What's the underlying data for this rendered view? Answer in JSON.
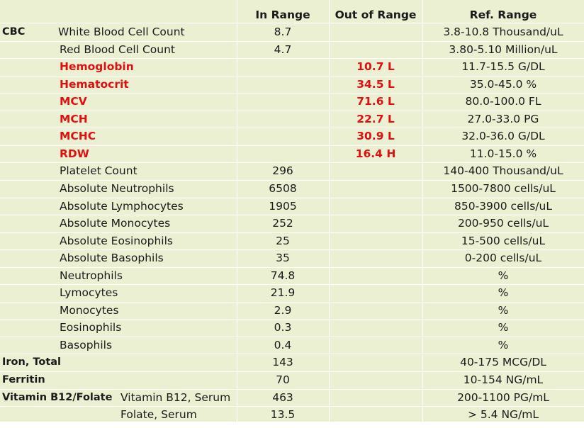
{
  "headers": {
    "in_range": "In Range",
    "out_of_range": "Out of Range",
    "ref_range": "Ref. Range"
  },
  "rows": [
    {
      "group": "CBC",
      "name": "White Blood Cell Count",
      "in": "8.7",
      "out": "",
      "ref": "3.8-10.8  Thousand/uL",
      "flag": false
    },
    {
      "group": "",
      "name": "Red Blood Cell Count",
      "in": "4.7",
      "out": "",
      "ref": "3.80-5.10  Million/uL",
      "flag": false
    },
    {
      "group": "",
      "name": "Hemoglobin",
      "in": "",
      "out": "10.7 L",
      "ref": "11.7-15.5  G/DL",
      "flag": true
    },
    {
      "group": "",
      "name": "Hematocrit",
      "in": "",
      "out": "34.5 L",
      "ref": "35.0-45.0  %",
      "flag": true
    },
    {
      "group": "",
      "name": "MCV",
      "in": "",
      "out": "71.6 L",
      "ref": "80.0-100.0  FL",
      "flag": true
    },
    {
      "group": "",
      "name": "MCH",
      "in": "",
      "out": "22.7 L",
      "ref": "27.0-33.0  PG",
      "flag": true
    },
    {
      "group": "",
      "name": "MCHC",
      "in": "",
      "out": "30.9 L",
      "ref": "32.0-36.0  G/DL",
      "flag": true
    },
    {
      "group": "",
      "name": "RDW",
      "in": "",
      "out": "16.4 H",
      "ref": "11.0-15.0  %",
      "flag": true
    },
    {
      "group": "",
      "name": "Platelet Count",
      "in": "296",
      "out": "",
      "ref": "140-400  Thousand/uL",
      "flag": false
    },
    {
      "group": "",
      "name": "Absolute Neutrophils",
      "in": "6508",
      "out": "",
      "ref": "1500-7800  cells/uL",
      "flag": false
    },
    {
      "group": "",
      "name": "Absolute Lymphocytes",
      "in": "1905",
      "out": "",
      "ref": "850-3900  cells/uL",
      "flag": false
    },
    {
      "group": "",
      "name": "Absolute Monocytes",
      "in": "252",
      "out": "",
      "ref": "200-950  cells/uL",
      "flag": false
    },
    {
      "group": "",
      "name": "Absolute Eosinophils",
      "in": "25",
      "out": "",
      "ref": "15-500  cells/uL",
      "flag": false
    },
    {
      "group": "",
      "name": "Absolute Basophils",
      "in": "35",
      "out": "",
      "ref": "0-200  cells/uL",
      "flag": false
    },
    {
      "group": "",
      "name": "Neutrophils",
      "in": "74.8",
      "out": "",
      "ref": "%",
      "flag": false
    },
    {
      "group": "",
      "name": "Lymocytes",
      "in": "21.9",
      "out": "",
      "ref": "%",
      "flag": false
    },
    {
      "group": "",
      "name": "Monocytes",
      "in": "2.9",
      "out": "",
      "ref": "%",
      "flag": false
    },
    {
      "group": "",
      "name": "Eosinophils",
      "in": "0.3",
      "out": "",
      "ref": "%",
      "flag": false
    },
    {
      "group": "",
      "name": "Basophils",
      "in": "0.4",
      "out": "",
      "ref": "%",
      "flag": false
    },
    {
      "group": "Iron, Total",
      "name": "",
      "in": "143",
      "out": "",
      "ref": "40-175  MCG/DL",
      "flag": false
    },
    {
      "group": "Ferritin",
      "name": "",
      "in": "70",
      "out": "",
      "ref": "10-154  NG/mL",
      "flag": false
    },
    {
      "group": "Vitamin  B12/Folate",
      "name": "Vitamin B12, Serum",
      "in": "463",
      "out": "",
      "ref": "200-1100  PG/mL",
      "flag": false
    },
    {
      "group": "",
      "name": "Folate, Serum",
      "in": "13.5",
      "out": "",
      "ref": "> 5.4  NG/mL",
      "flag": false
    }
  ]
}
